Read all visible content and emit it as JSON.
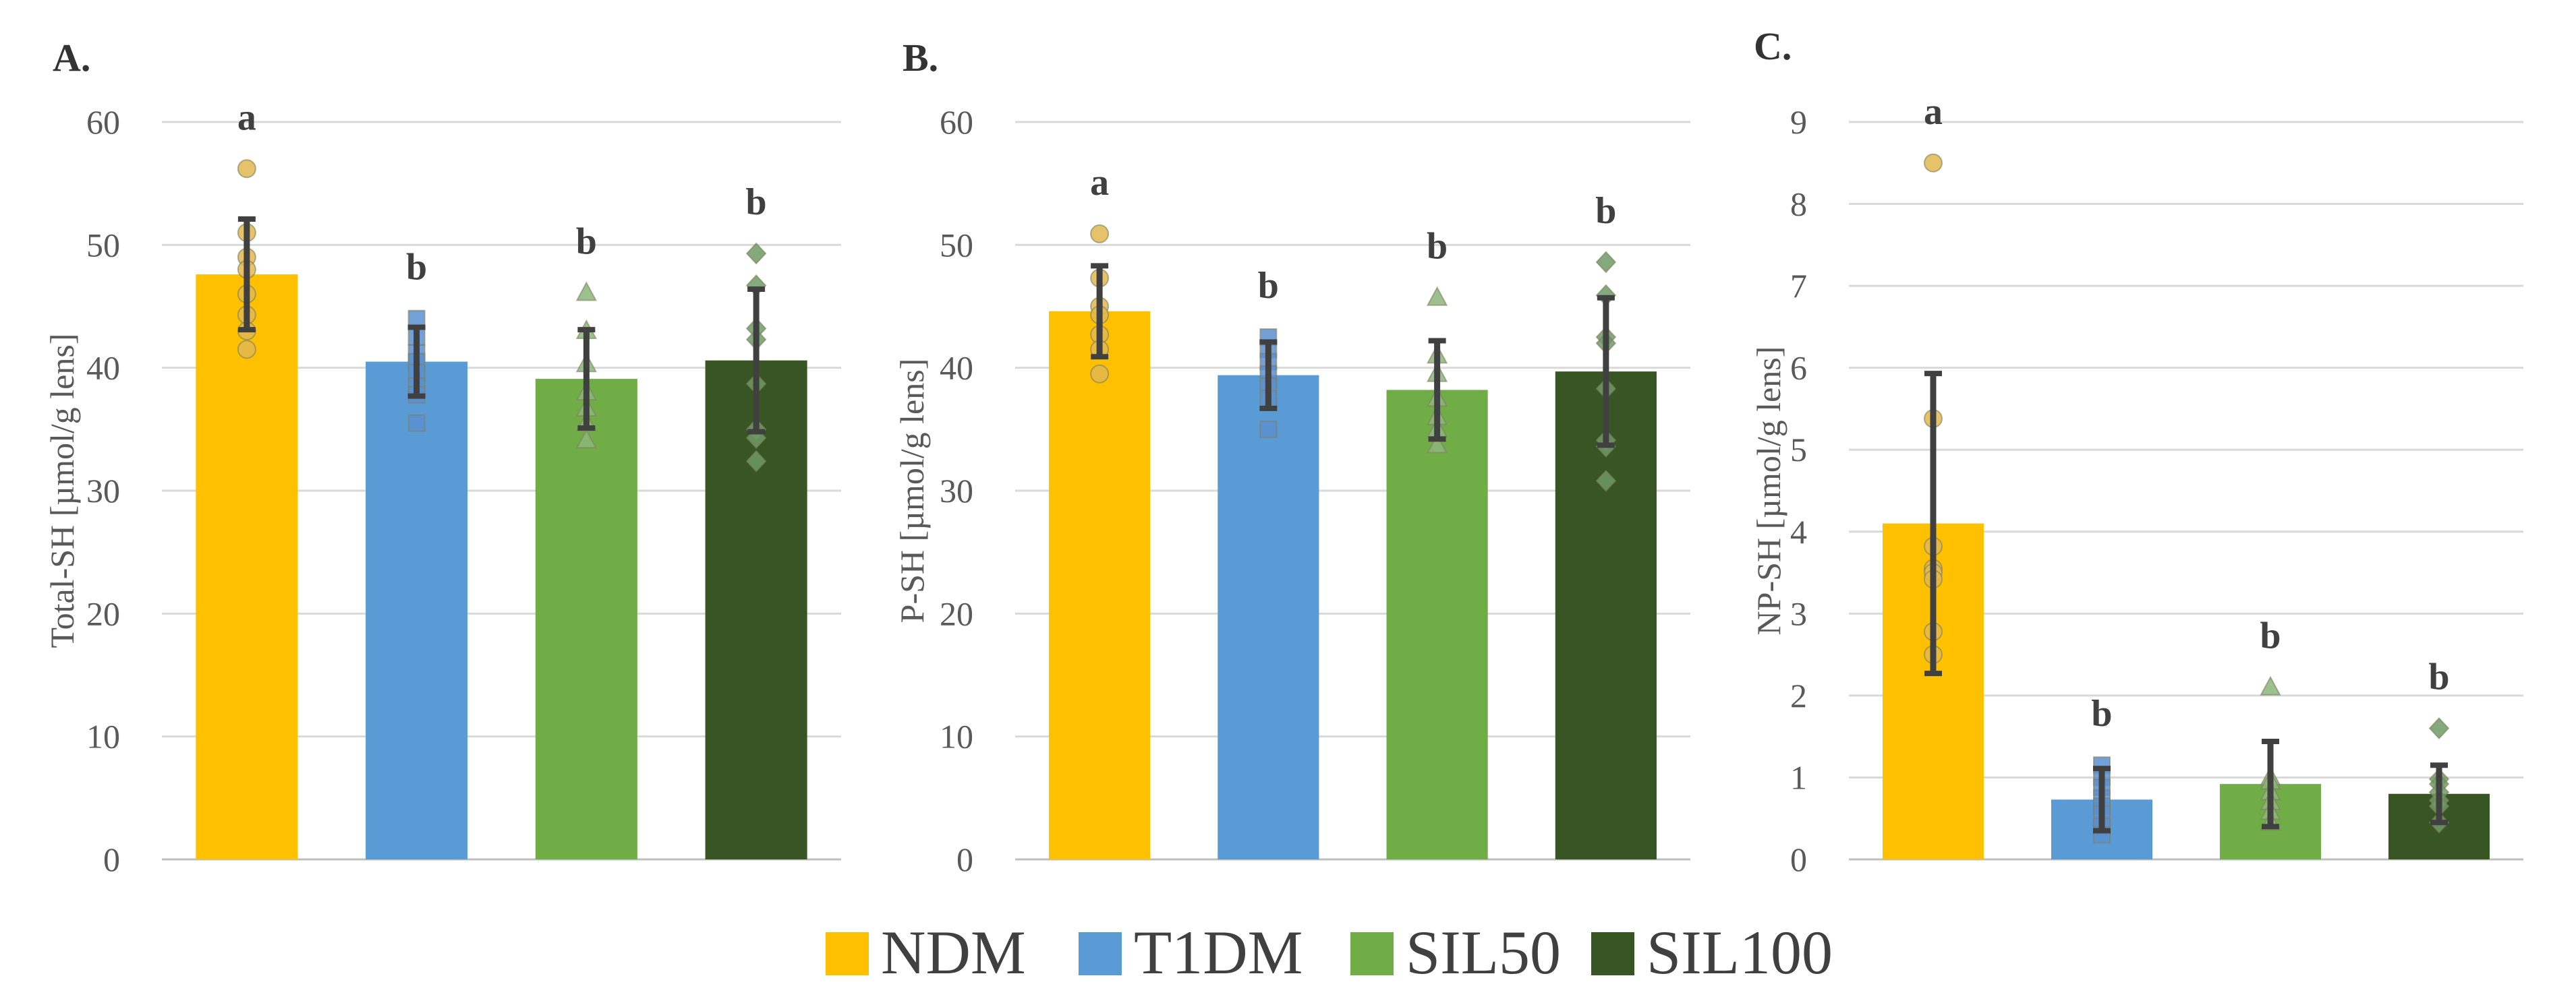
{
  "legend": [
    {
      "label": "NDM",
      "color": "#FFC000"
    },
    {
      "label": "T1DM",
      "color": "#5B9BD5"
    },
    {
      "label": "SIL50",
      "color": "#70AD47"
    },
    {
      "label": "SIL100",
      "color": "#375623"
    }
  ],
  "chart_data": [
    {
      "type": "bar",
      "panel_label": "A.",
      "title": "",
      "xlabel": "",
      "ylabel": "Total-SH [µmol/g lens]",
      "ylim": [
        0,
        60
      ],
      "yticks": [
        0,
        10,
        20,
        30,
        40,
        50,
        60
      ],
      "grid": true,
      "categories": [
        "NDM",
        "T1DM",
        "SIL50",
        "SIL100"
      ],
      "values": [
        47.6,
        40.5,
        39.1,
        40.6
      ],
      "error": [
        4.5,
        2.8,
        4.0,
        5.8
      ],
      "significance": [
        "a",
        "b",
        "b",
        "b"
      ],
      "points": [
        [
          56.2,
          51.0,
          49.0,
          48.0,
          46.0,
          44.3,
          43.0,
          41.5
        ],
        [
          44.0,
          42.5,
          41.2,
          40.5,
          39.6,
          38.5,
          37.8,
          35.5
        ],
        [
          46.1,
          43.0,
          40.3,
          38.0,
          36.7,
          35.5,
          34.1
        ],
        [
          49.3,
          46.7,
          43.2,
          42.3,
          38.7,
          35.0,
          34.3,
          32.4
        ]
      ]
    },
    {
      "type": "bar",
      "panel_label": "B.",
      "title": "",
      "xlabel": "",
      "ylabel": "P-SH [µmol/g lens]",
      "ylim": [
        0,
        60
      ],
      "yticks": [
        0,
        10,
        20,
        30,
        40,
        50,
        60
      ],
      "grid": true,
      "categories": [
        "NDM",
        "T1DM",
        "SIL50",
        "SIL100"
      ],
      "values": [
        44.6,
        39.4,
        38.2,
        39.7
      ],
      "error": [
        3.7,
        2.7,
        4.0,
        6.0
      ],
      "significance": [
        "a",
        "b",
        "b",
        "b"
      ],
      "points": [
        [
          50.9,
          47.3,
          45.0,
          44.3,
          42.7,
          41.5,
          39.5
        ],
        [
          42.5,
          41.5,
          40.5,
          39.5,
          38.5,
          37.5,
          35.0
        ],
        [
          45.7,
          41.0,
          39.5,
          37.5,
          36.0,
          35.0,
          33.7
        ],
        [
          48.6,
          45.9,
          42.5,
          42.0,
          38.3,
          34.1,
          33.6,
          30.8
        ]
      ]
    },
    {
      "type": "bar",
      "panel_label": "C.",
      "title": "",
      "xlabel": "",
      "ylabel": "NP-SH [µmol/g lens]",
      "ylim": [
        0,
        9
      ],
      "yticks": [
        0,
        1,
        2,
        3,
        4,
        5,
        6,
        7,
        8,
        9
      ],
      "grid": true,
      "categories": [
        "NDM",
        "T1DM",
        "SIL50",
        "SIL100"
      ],
      "values": [
        4.1,
        0.73,
        0.92,
        0.8
      ],
      "error": [
        1.83,
        0.38,
        0.52,
        0.35
      ],
      "significance": [
        "a",
        "b",
        "b",
        "b"
      ],
      "points": [
        [
          8.5,
          5.38,
          3.82,
          3.55,
          3.5,
          3.42,
          2.78,
          2.5
        ],
        [
          1.15,
          1.0,
          0.88,
          0.75,
          0.65,
          0.55,
          0.4,
          0.3
        ],
        [
          2.1,
          1.0,
          0.95,
          0.82,
          0.7,
          0.58,
          0.45
        ],
        [
          1.6,
          0.98,
          0.92,
          0.82,
          0.72,
          0.65,
          0.45
        ]
      ]
    }
  ]
}
